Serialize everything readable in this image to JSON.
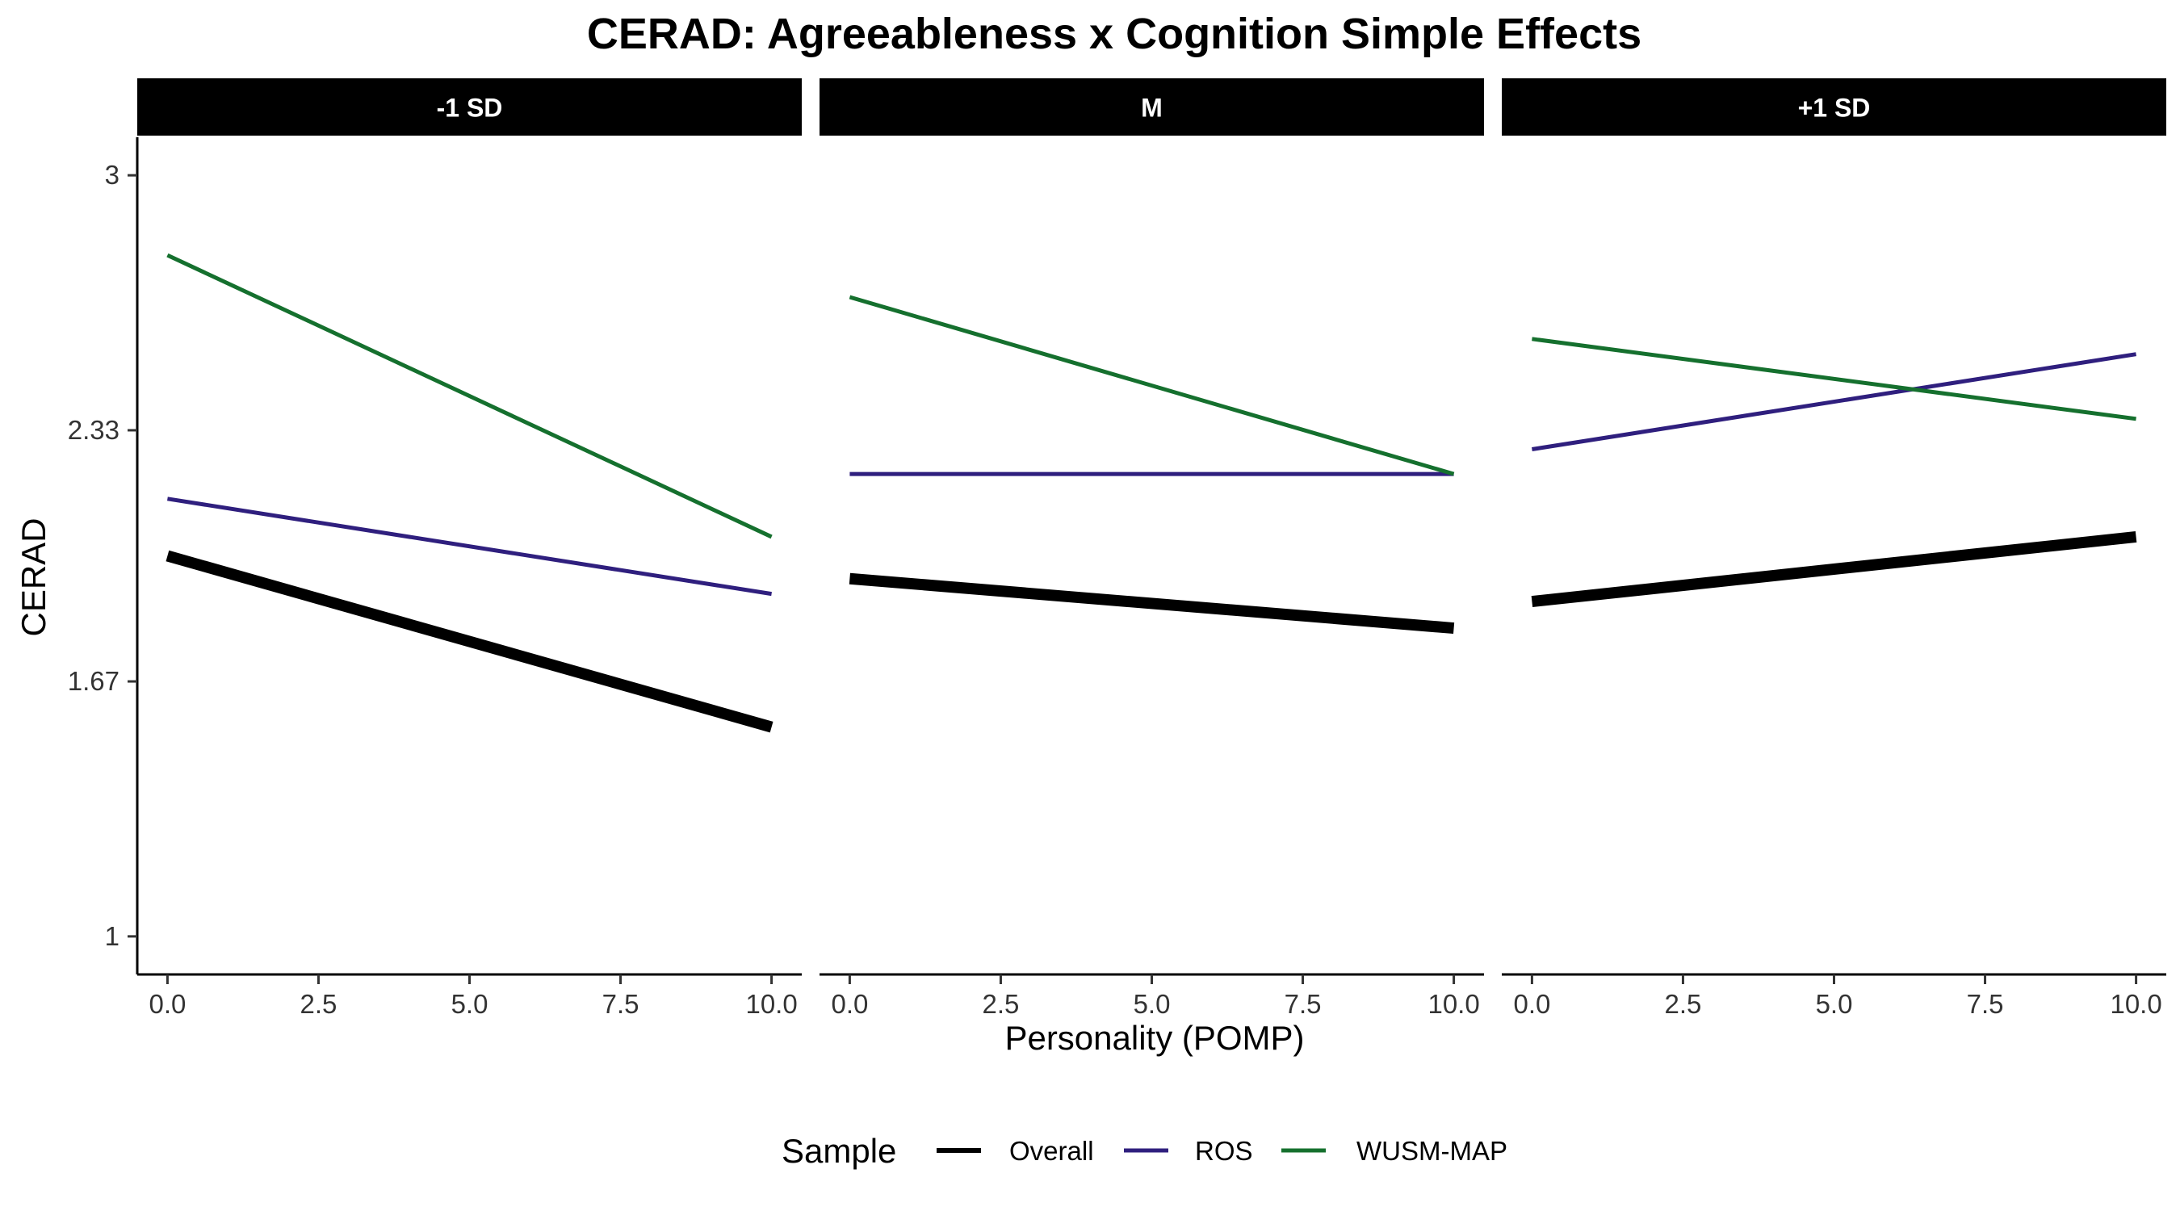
{
  "chart_data": {
    "type": "line",
    "title": "CERAD: Agreeableness x Cognition Simple Effects",
    "xlabel": "Personality (POMP)",
    "ylabel": "CERAD",
    "xlim": [
      -0.5,
      10.5
    ],
    "ylim": [
      0.9,
      3.1
    ],
    "x_ticks": [
      0,
      2.5,
      5,
      7.5,
      10
    ],
    "x_tick_labels": [
      "0.0",
      "2.5",
      "5.0",
      "7.5",
      "10.0"
    ],
    "y_ticks": [
      1,
      1.67,
      2.33,
      3
    ],
    "y_tick_labels": [
      "1",
      "1.67",
      "2.33",
      "3"
    ],
    "grid": false,
    "legend": {
      "title": "Sample",
      "position": "bottom",
      "entries": [
        "Overall",
        "ROS",
        "WUSM-MAP"
      ]
    },
    "colors": {
      "Overall": "#000000",
      "ROS": "#2f1f7e",
      "WUSM-MAP": "#15702e",
      "strip_bg": "#000000",
      "strip_text": "#ffffff"
    },
    "panels": [
      {
        "label": "-1 SD",
        "series": [
          {
            "name": "Overall",
            "x": [
              0,
              10
            ],
            "y": [
              2.0,
              1.55
            ]
          },
          {
            "name": "ROS",
            "x": [
              0,
              10
            ],
            "y": [
              2.15,
              1.9
            ]
          },
          {
            "name": "WUSM-MAP",
            "x": [
              0,
              10
            ],
            "y": [
              2.79,
              2.05
            ]
          }
        ]
      },
      {
        "label": "M",
        "series": [
          {
            "name": "Overall",
            "x": [
              0,
              10
            ],
            "y": [
              1.94,
              1.81
            ]
          },
          {
            "name": "ROS",
            "x": [
              0,
              10
            ],
            "y": [
              2.215,
              2.215
            ]
          },
          {
            "name": "WUSM-MAP",
            "x": [
              0,
              10
            ],
            "y": [
              2.68,
              2.215
            ]
          }
        ]
      },
      {
        "label": "+1 SD",
        "series": [
          {
            "name": "Overall",
            "x": [
              0,
              10
            ],
            "y": [
              1.88,
              2.05
            ]
          },
          {
            "name": "ROS",
            "x": [
              0,
              10
            ],
            "y": [
              2.28,
              2.53
            ]
          },
          {
            "name": "WUSM-MAP",
            "x": [
              0,
              10
            ],
            "y": [
              2.57,
              2.36
            ]
          }
        ]
      }
    ]
  }
}
